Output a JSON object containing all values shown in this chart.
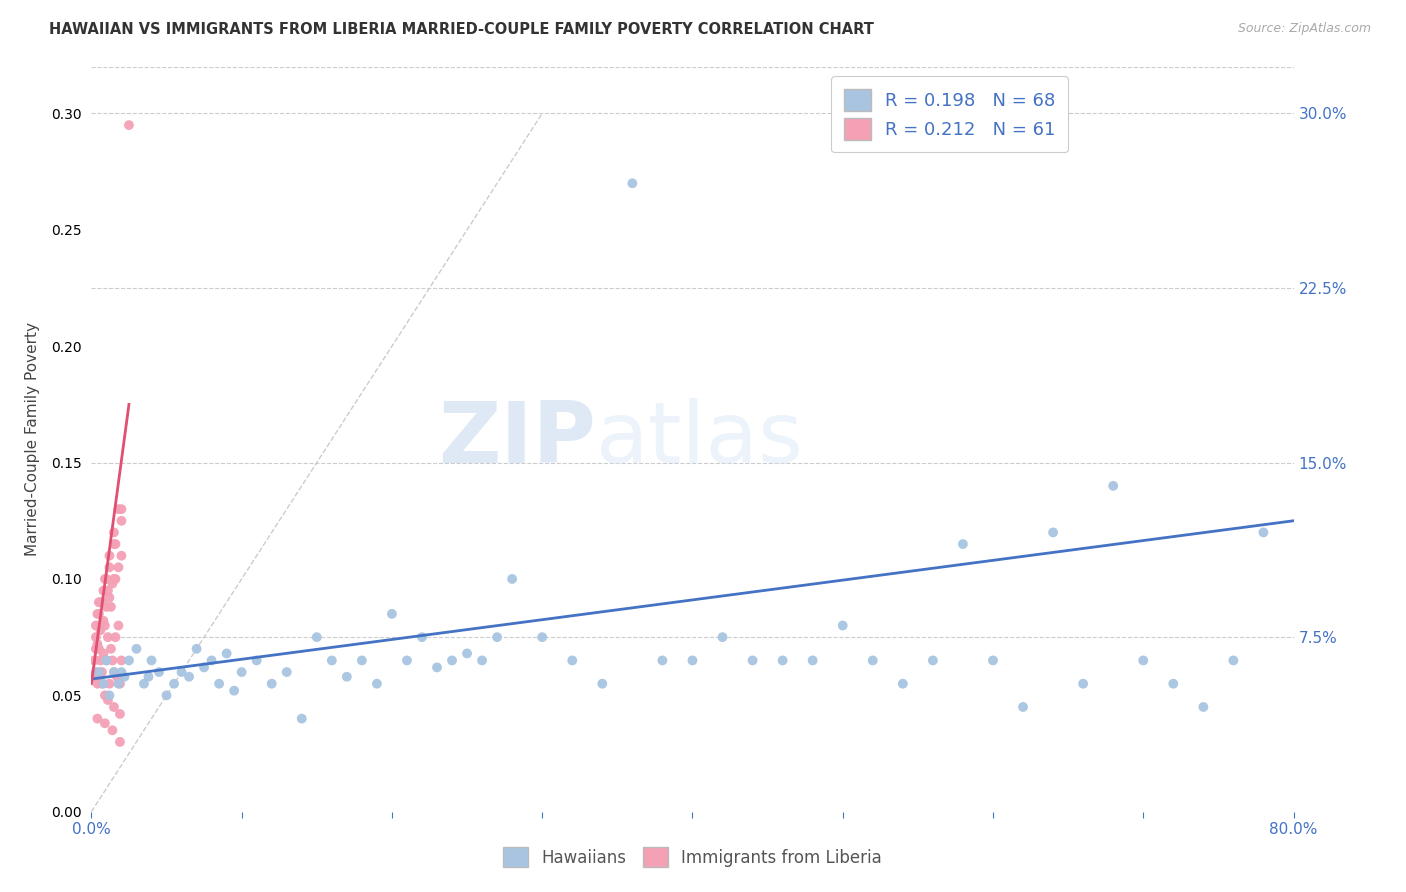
{
  "title": "HAWAIIAN VS IMMIGRANTS FROM LIBERIA MARRIED-COUPLE FAMILY POVERTY CORRELATION CHART",
  "source": "Source: ZipAtlas.com",
  "ylabel": "Married-Couple Family Poverty",
  "xlim": [
    0.0,
    0.8
  ],
  "ylim": [
    0.0,
    0.32
  ],
  "x_ticks": [
    0.0,
    0.1,
    0.2,
    0.3,
    0.4,
    0.5,
    0.6,
    0.7,
    0.8
  ],
  "x_tick_labels": [
    "0.0%",
    "",
    "",
    "",
    "",
    "",
    "",
    "",
    "80.0%"
  ],
  "y_ticks_right": [
    0.075,
    0.15,
    0.225,
    0.3
  ],
  "y_tick_labels_right": [
    "7.5%",
    "15.0%",
    "22.5%",
    "30.0%"
  ],
  "hawaiian_color": "#a8c4e0",
  "liberia_color": "#f4a0b5",
  "trend_hawaiian_color": "#4472c4",
  "trend_liberia_color": "#e05070",
  "diagonal_color": "#cccccc",
  "R_hawaiian": 0.198,
  "N_hawaiian": 68,
  "R_liberia": 0.212,
  "N_liberia": 61,
  "legend_labels": [
    "Hawaiians",
    "Immigrants from Liberia"
  ],
  "watermark_zip": "ZIP",
  "watermark_atlas": "atlas",
  "background_color": "#ffffff",
  "hawaiian_scatter_x": [
    0.005,
    0.008,
    0.01,
    0.012,
    0.015,
    0.018,
    0.02,
    0.022,
    0.025,
    0.03,
    0.035,
    0.038,
    0.04,
    0.045,
    0.05,
    0.055,
    0.06,
    0.065,
    0.07,
    0.075,
    0.08,
    0.085,
    0.09,
    0.095,
    0.1,
    0.11,
    0.12,
    0.13,
    0.14,
    0.15,
    0.16,
    0.17,
    0.18,
    0.19,
    0.2,
    0.21,
    0.22,
    0.23,
    0.24,
    0.25,
    0.26,
    0.27,
    0.28,
    0.3,
    0.32,
    0.34,
    0.36,
    0.38,
    0.4,
    0.42,
    0.44,
    0.46,
    0.48,
    0.5,
    0.52,
    0.54,
    0.56,
    0.58,
    0.6,
    0.62,
    0.64,
    0.66,
    0.68,
    0.7,
    0.72,
    0.74,
    0.76,
    0.78
  ],
  "hawaiian_scatter_y": [
    0.06,
    0.055,
    0.065,
    0.05,
    0.06,
    0.055,
    0.06,
    0.058,
    0.065,
    0.07,
    0.055,
    0.058,
    0.065,
    0.06,
    0.05,
    0.055,
    0.06,
    0.058,
    0.07,
    0.062,
    0.065,
    0.055,
    0.068,
    0.052,
    0.06,
    0.065,
    0.055,
    0.06,
    0.04,
    0.075,
    0.065,
    0.058,
    0.065,
    0.055,
    0.085,
    0.065,
    0.075,
    0.062,
    0.065,
    0.068,
    0.065,
    0.075,
    0.1,
    0.075,
    0.065,
    0.055,
    0.27,
    0.065,
    0.065,
    0.075,
    0.065,
    0.065,
    0.065,
    0.08,
    0.065,
    0.055,
    0.065,
    0.115,
    0.065,
    0.045,
    0.12,
    0.055,
    0.14,
    0.065,
    0.055,
    0.045,
    0.065,
    0.12
  ],
  "liberia_scatter_x": [
    0.002,
    0.003,
    0.004,
    0.005,
    0.006,
    0.007,
    0.008,
    0.009,
    0.01,
    0.011,
    0.012,
    0.013,
    0.014,
    0.015,
    0.016,
    0.017,
    0.018,
    0.019,
    0.02,
    0.003,
    0.005,
    0.007,
    0.009,
    0.011,
    0.013,
    0.015,
    0.002,
    0.004,
    0.006,
    0.008,
    0.01,
    0.012,
    0.014,
    0.016,
    0.018,
    0.02,
    0.003,
    0.006,
    0.009,
    0.012,
    0.015,
    0.018,
    0.004,
    0.008,
    0.012,
    0.016,
    0.02,
    0.005,
    0.01,
    0.015,
    0.02,
    0.003,
    0.007,
    0.011,
    0.015,
    0.019,
    0.004,
    0.009,
    0.014,
    0.019,
    0.025
  ],
  "liberia_scatter_y": [
    0.058,
    0.06,
    0.055,
    0.07,
    0.065,
    0.06,
    0.068,
    0.05,
    0.065,
    0.075,
    0.055,
    0.07,
    0.065,
    0.06,
    0.075,
    0.058,
    0.08,
    0.055,
    0.065,
    0.075,
    0.085,
    0.09,
    0.08,
    0.095,
    0.088,
    0.1,
    0.065,
    0.072,
    0.078,
    0.082,
    0.088,
    0.092,
    0.098,
    0.1,
    0.105,
    0.11,
    0.08,
    0.09,
    0.1,
    0.11,
    0.12,
    0.13,
    0.085,
    0.095,
    0.105,
    0.115,
    0.125,
    0.09,
    0.1,
    0.115,
    0.13,
    0.07,
    0.055,
    0.048,
    0.045,
    0.042,
    0.04,
    0.038,
    0.035,
    0.03,
    0.295
  ],
  "hawaiian_trend_x": [
    0.0,
    0.8
  ],
  "hawaiian_trend_y": [
    0.057,
    0.125
  ],
  "liberia_trend_x": [
    0.0,
    0.025
  ],
  "liberia_trend_y": [
    0.055,
    0.175
  ]
}
